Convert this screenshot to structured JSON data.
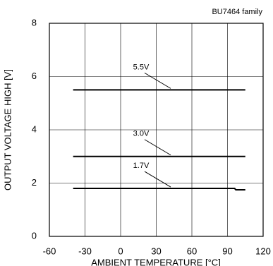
{
  "chart_data": {
    "type": "line",
    "annotation": "BU7464 family",
    "xlabel": "AMBIENT TEMPERATURE [°C]",
    "ylabel": "OUTPUT VOLTAGE HIGH [V]",
    "xlim": [
      -60,
      120
    ],
    "xticks": [
      -60,
      -30,
      0,
      30,
      60,
      90,
      120
    ],
    "ylim": [
      0,
      8
    ],
    "yticks": [
      0,
      2,
      4,
      6,
      8
    ],
    "grid": true,
    "series": [
      {
        "name": "5.5V",
        "color": "#000000",
        "x": [
          -40,
          105
        ],
        "values": [
          5.5,
          5.5
        ]
      },
      {
        "name": "3.0V",
        "color": "#000000",
        "x": [
          -40,
          105
        ],
        "values": [
          3.0,
          3.0
        ]
      },
      {
        "name": "1.7V",
        "color": "#000000",
        "x": [
          -40,
          96,
          97,
          105
        ],
        "values": [
          1.8,
          1.8,
          1.75,
          1.75
        ]
      }
    ]
  }
}
